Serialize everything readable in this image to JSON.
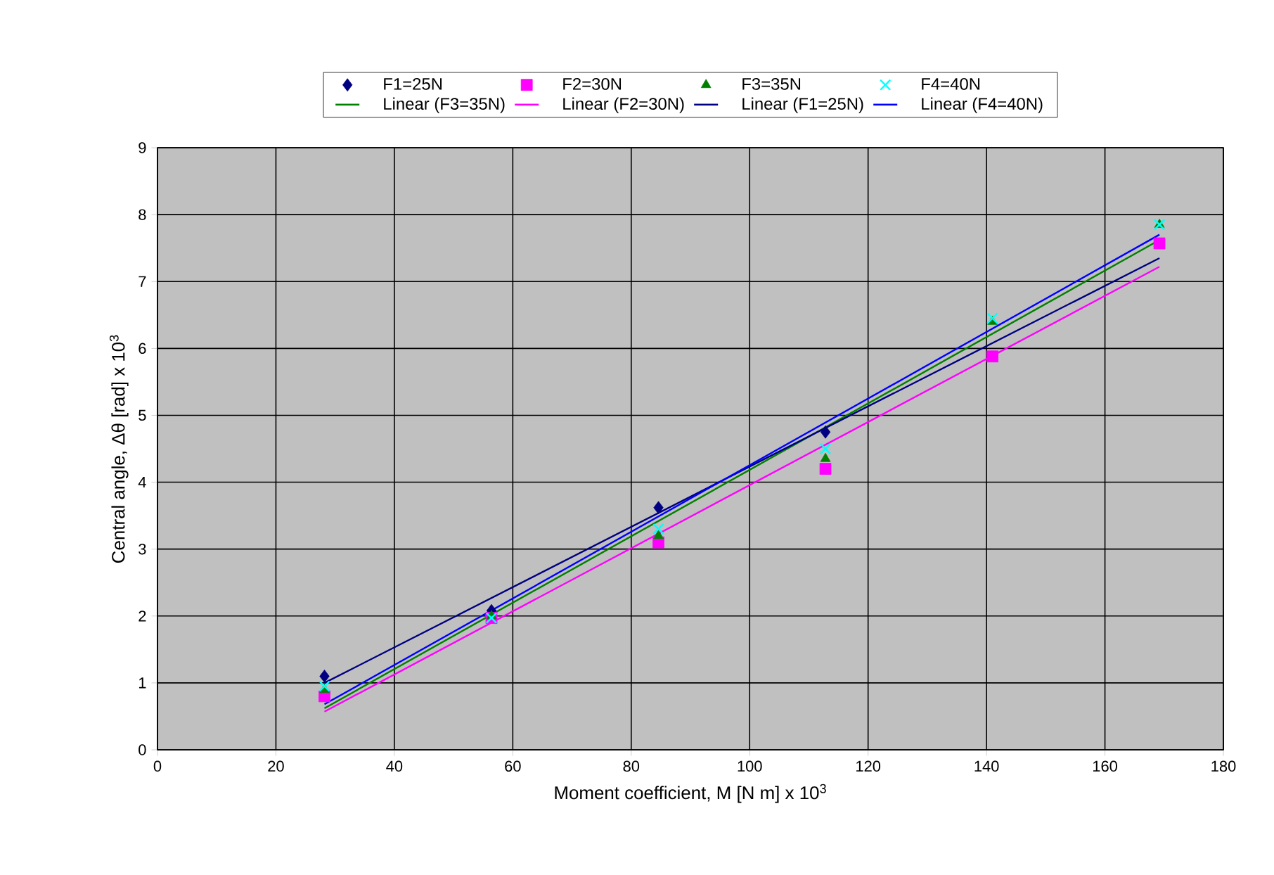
{
  "chart_data": {
    "type": "scatter",
    "xlabel": "Moment coefficient, M [N m] x 10$^{3}$",
    "ylabel": "Central angle, Δθ [rad] x 10$^{3}$",
    "x": [
      28.2,
      56.4,
      84.6,
      112.8,
      141,
      169.2
    ],
    "series": [
      {
        "name": "F1=25N",
        "marker": "diamond",
        "color": "#000080",
        "values": [
          1.1,
          2.08,
          3.62,
          4.75,
          null,
          null
        ]
      },
      {
        "name": "F2=30N",
        "marker": "square",
        "color": "#ff00ff",
        "values": [
          0.8,
          1.97,
          3.1,
          4.2,
          5.88,
          7.57
        ]
      },
      {
        "name": "F3=35N",
        "marker": "triangle",
        "color": "#008000",
        "values": [
          0.9,
          2.0,
          3.2,
          4.35,
          6.4,
          7.85
        ]
      },
      {
        "name": "F4=40N",
        "marker": "cross",
        "color": "#00ffff",
        "values": [
          0.95,
          1.97,
          3.3,
          4.5,
          6.45,
          7.85
        ]
      },
      {
        "name": "Linear (F3=35N)",
        "type": "line",
        "marker": "none",
        "color": "#008000",
        "values": [
          0.62,
          null,
          null,
          null,
          null,
          7.62
        ]
      },
      {
        "name": "Linear (F2=30N)",
        "type": "line",
        "marker": "none",
        "color": "#ff00ff",
        "values": [
          0.57,
          null,
          null,
          null,
          null,
          7.22
        ]
      },
      {
        "name": "Linear (F1=25N)",
        "type": "line",
        "marker": "none",
        "color": "#000080",
        "values": [
          1.0,
          null,
          null,
          null,
          null,
          7.35
        ]
      },
      {
        "name": "Linear (F4=40N)",
        "type": "line",
        "marker": "none",
        "color": "#0000ff",
        "values": [
          0.68,
          null,
          null,
          null,
          null,
          7.7
        ]
      }
    ],
    "xlim": [
      0,
      180
    ],
    "xticks": [
      0,
      20,
      40,
      60,
      80,
      100,
      120,
      140,
      160,
      180
    ],
    "ylim": [
      0,
      9
    ],
    "yticks": [
      0,
      1,
      2,
      3,
      4,
      5,
      6,
      7,
      8,
      9
    ],
    "grid": true,
    "legend": "top"
  }
}
